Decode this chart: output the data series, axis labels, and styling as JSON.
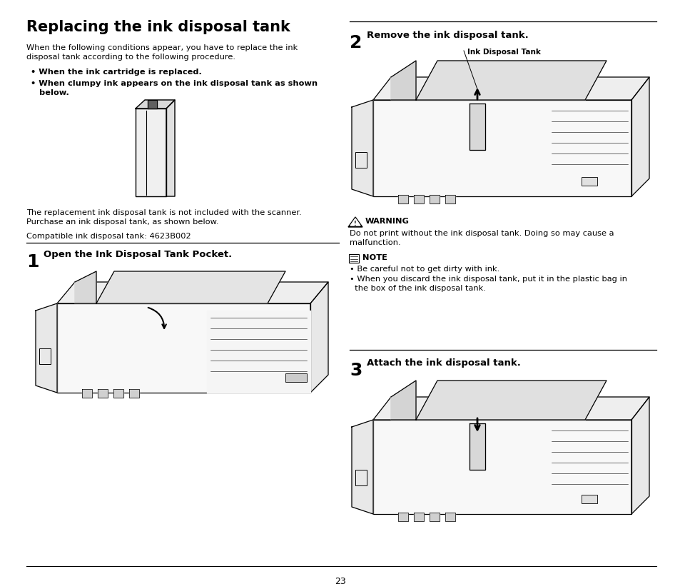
{
  "bg_color": "#ffffff",
  "title": "Replacing the ink disposal tank",
  "intro_text": "When the following conditions appear, you have to replace the ink\ndisposal tank according to the following procedure.",
  "bullet1": "• When the ink cartridge is replaced.",
  "bullet2": "• When clumpy ink appears on the ink disposal tank as shown\n   below.",
  "replacement_text": "The replacement ink disposal tank is not included with the scanner.\nPurchase an ink disposal tank, as shown below.",
  "compatible_text": "Compatible ink disposal tank: 4623B002",
  "step1_num": "1",
  "step1_text": "Open the Ink Disposal Tank Pocket.",
  "step2_num": "2",
  "step2_text": "Remove the ink disposal tank.",
  "ink_disposal_label": "Ink Disposal Tank",
  "warning_title": "WARNING",
  "warning_text": "Do not print without the ink disposal tank. Doing so may cause a\nmalfunction.",
  "note_title": "NOTE",
  "note_bullet1": "• Be careful not to get dirty with ink.",
  "note_bullet2": "• When you discard the ink disposal tank, put it in the plastic bag in\n  the box of the ink disposal tank.",
  "step3_num": "3",
  "step3_text": "Attach the ink disposal tank.",
  "page_number": "23",
  "text_color": "#000000",
  "font_size_title": 15,
  "font_size_body": 8.2,
  "font_size_step_num": 18,
  "font_size_step_text": 9.5,
  "font_size_label": 7.5
}
